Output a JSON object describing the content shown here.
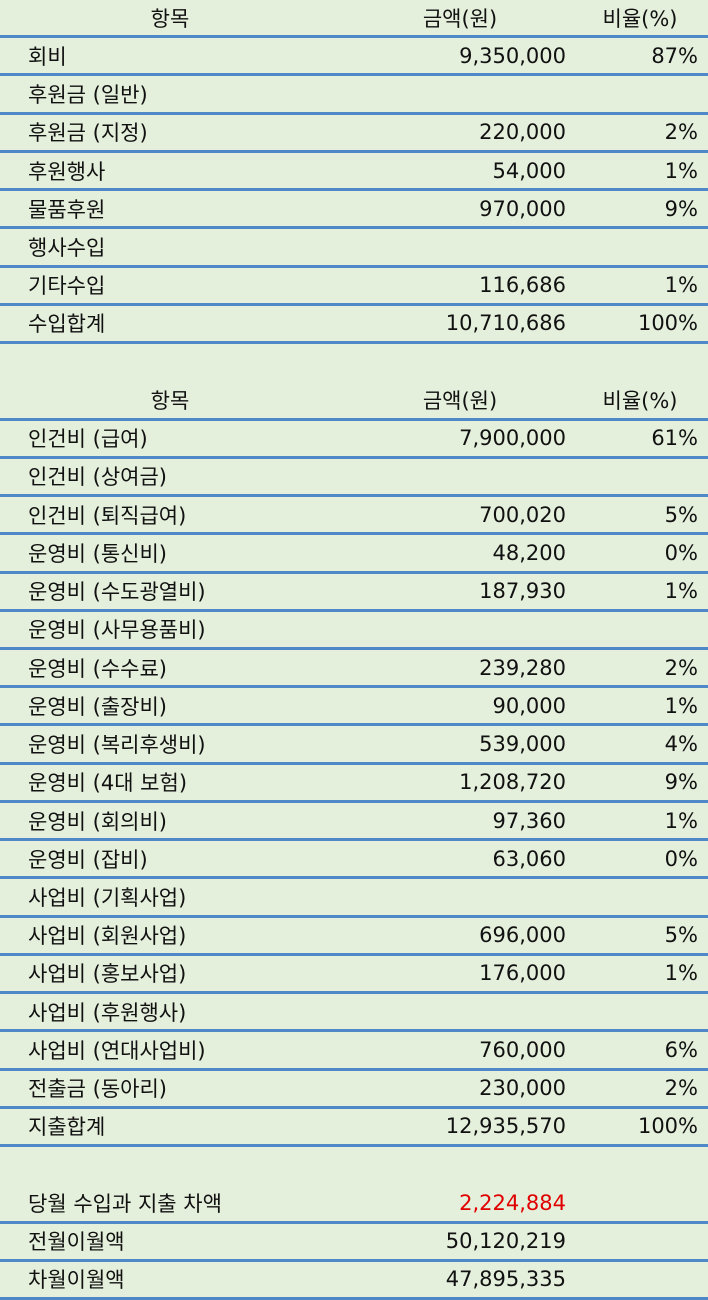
{
  "income": {
    "header": [
      "항목",
      "금액(원)",
      "비율(%)"
    ],
    "rows": [
      {
        "item": "회비",
        "amount": "9,350,000",
        "ratio": "87%"
      },
      {
        "item": "후원금 (일반)"
      },
      {
        "item": "후원금 (지정)",
        "amount": "220,000",
        "ratio": "2%"
      },
      {
        "item": "후원행사",
        "amount": "54,000",
        "ratio": "1%"
      },
      {
        "item": "물품후원",
        "amount": "970,000",
        "ratio": "9%"
      },
      {
        "item": "행사수입"
      },
      {
        "item": "기타수입",
        "amount": "116,686",
        "ratio": "1%"
      },
      {
        "item": "수입합계",
        "amount": "10,710,686",
        "ratio": "100%"
      }
    ]
  },
  "expense": {
    "header": [
      "항목",
      "금액(원)",
      "비율(%)"
    ],
    "rows": [
      {
        "item": "인건비 (급여)",
        "amount": "7,900,000",
        "ratio": "61%"
      },
      {
        "item": "인건비 (상여금)"
      },
      {
        "item": "인건비 (퇴직급여)",
        "amount": "700,020",
        "ratio": "5%"
      },
      {
        "item": "운영비 (통신비)",
        "amount": "48,200",
        "ratio": "0%"
      },
      {
        "item": "운영비 (수도광열비)",
        "amount": "187,930",
        "ratio": "1%"
      },
      {
        "item": "운영비 (사무용품비)"
      },
      {
        "item": "운영비 (수수료)",
        "amount": "239,280",
        "ratio": "2%"
      },
      {
        "item": "운영비 (출장비)",
        "amount": "90,000",
        "ratio": "1%"
      },
      {
        "item": "운영비 (복리후생비)",
        "amount": "539,000",
        "ratio": "4%"
      },
      {
        "item": "운영비 (4대 보험)",
        "amount": "1,208,720",
        "ratio": "9%"
      },
      {
        "item": "운영비 (회의비)",
        "amount": "97,360",
        "ratio": "1%"
      },
      {
        "item": "운영비 (잡비)",
        "amount": "63,060",
        "ratio": "0%"
      },
      {
        "item": "사업비 (기획사업)"
      },
      {
        "item": "사업비 (회원사업)",
        "amount": "696,000",
        "ratio": "5%"
      },
      {
        "item": "사업비 (홍보사업)",
        "amount": "176,000",
        "ratio": "1%"
      },
      {
        "item": "사업비 (후원행사)"
      },
      {
        "item": "사업비 (연대사업비)",
        "amount": "760,000",
        "ratio": "6%"
      },
      {
        "item": "전출금 (동아리)",
        "amount": "230,000",
        "ratio": "2%"
      },
      {
        "item": "지출합계",
        "amount": "12,935,570",
        "ratio": "100%"
      }
    ]
  },
  "summary": {
    "rows": [
      {
        "item": "당월 수입과 지출 차액",
        "amount": "2,224,884",
        "amount_color": "#e00000"
      },
      {
        "item": "전월이월액",
        "amount": "50,120,219"
      },
      {
        "item": "차월이월액",
        "amount": "47,895,335"
      }
    ]
  }
}
